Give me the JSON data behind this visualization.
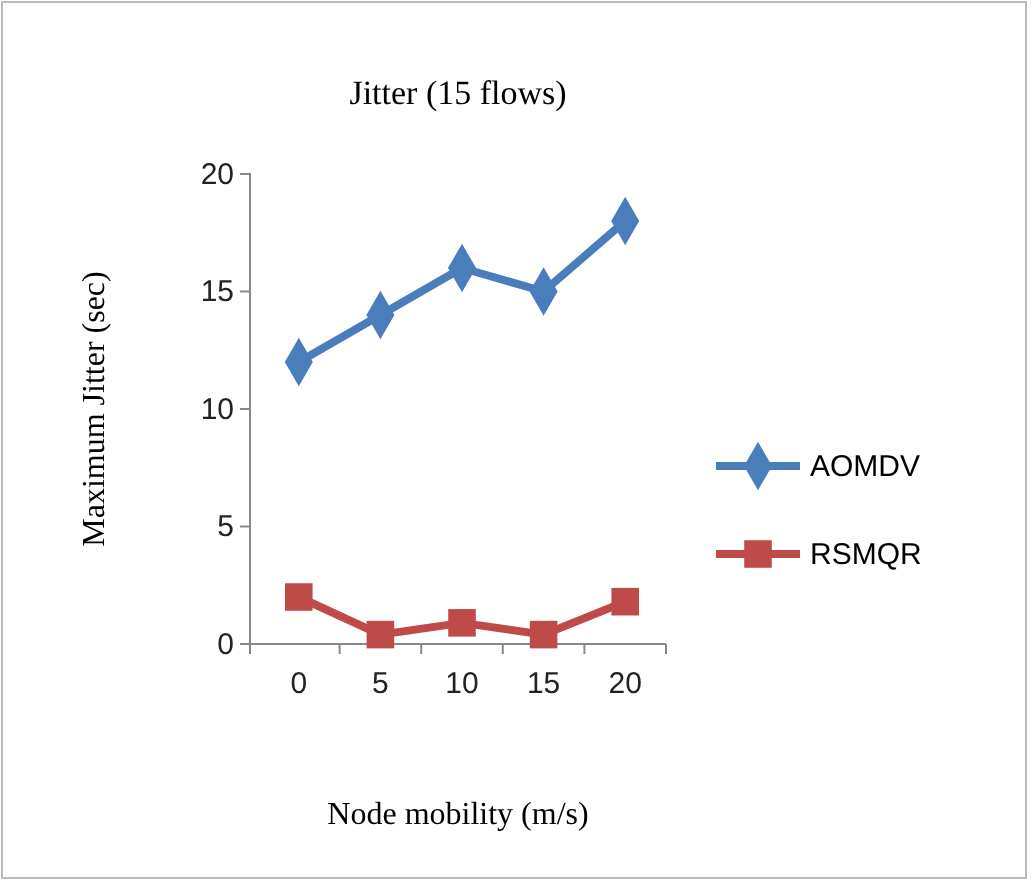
{
  "chart_data": {
    "type": "line",
    "title": "Jitter (15 flows)",
    "xlabel": "Node mobility (m/s)",
    "ylabel": "Maximum Jitter (sec)",
    "categories": [
      "0",
      "5",
      "10",
      "15",
      "20"
    ],
    "series": [
      {
        "name": "AOMDV",
        "color": "#4a7ebb",
        "values": [
          12,
          14,
          16,
          15,
          18
        ],
        "marker": "diamond"
      },
      {
        "name": "RSMQR",
        "color": "#be4b48",
        "values": [
          2,
          0.4,
          0.9,
          0.4,
          1.8
        ],
        "marker": "square"
      }
    ],
    "ylim": [
      0,
      20
    ],
    "yticks": [
      0,
      5,
      10,
      15,
      20
    ],
    "grid": false,
    "legend": "right",
    "line_style": "solid"
  }
}
